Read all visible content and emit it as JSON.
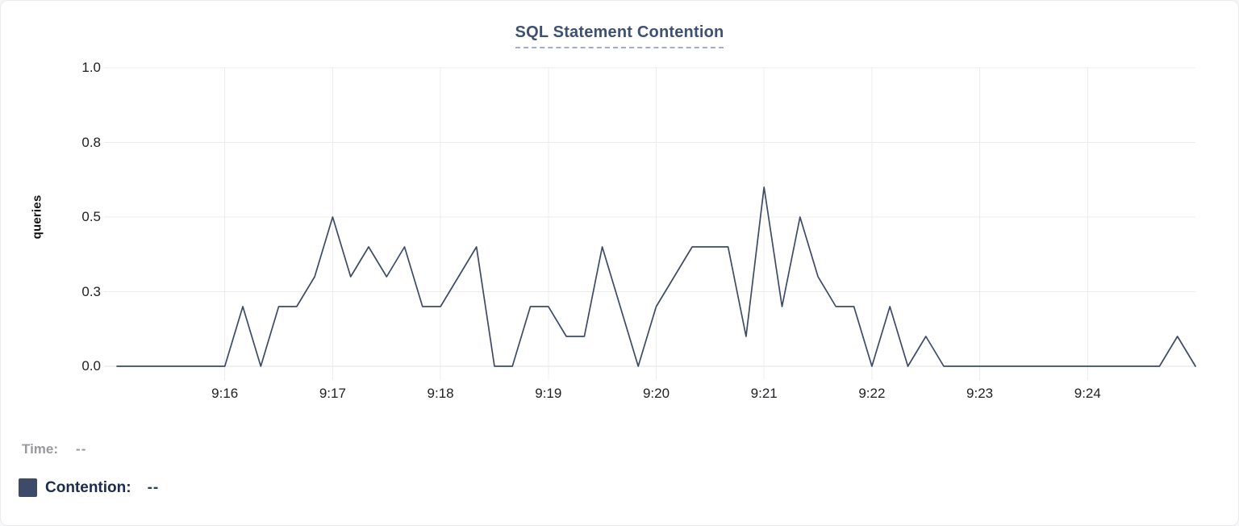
{
  "header": {
    "title": "SQL Statement Contention"
  },
  "chart_data": {
    "type": "line",
    "title": "SQL Statement Contention",
    "xlabel": "",
    "ylabel": "queries",
    "ylim": [
      0,
      1
    ],
    "grid": true,
    "legend_position": "bottom-left",
    "y_tick_labels": [
      "1.0",
      "0.8",
      "0.5",
      "0.3",
      "0.0"
    ],
    "y_tick_values": [
      1.0,
      0.75,
      0.5,
      0.25,
      0.0
    ],
    "x_tick_labels": [
      "9:16",
      "9:17",
      "9:18",
      "9:19",
      "9:20",
      "9:21",
      "9:22",
      "9:23",
      "9:24"
    ],
    "x_start": "9:15:00",
    "x_end": "9:25:00",
    "interval_seconds": 10,
    "series": [
      {
        "name": "Contention",
        "color": "#3d4b68",
        "times": [
          "9:15:00",
          "9:15:10",
          "9:15:20",
          "9:15:30",
          "9:15:40",
          "9:15:50",
          "9:16:00",
          "9:16:10",
          "9:16:20",
          "9:16:30",
          "9:16:40",
          "9:16:50",
          "9:17:00",
          "9:17:10",
          "9:17:20",
          "9:17:30",
          "9:17:40",
          "9:17:50",
          "9:18:00",
          "9:18:10",
          "9:18:20",
          "9:18:30",
          "9:18:40",
          "9:18:50",
          "9:19:00",
          "9:19:10",
          "9:19:20",
          "9:19:30",
          "9:19:40",
          "9:19:50",
          "9:20:00",
          "9:20:10",
          "9:20:20",
          "9:20:30",
          "9:20:40",
          "9:20:50",
          "9:21:00",
          "9:21:10",
          "9:21:20",
          "9:21:30",
          "9:21:40",
          "9:21:50",
          "9:22:00",
          "9:22:10",
          "9:22:20",
          "9:22:30",
          "9:22:40",
          "9:22:50",
          "9:23:00",
          "9:23:10",
          "9:23:20",
          "9:23:30",
          "9:23:40",
          "9:23:50",
          "9:24:00",
          "9:24:10",
          "9:24:20",
          "9:24:30",
          "9:24:40",
          "9:24:50",
          "9:25:00"
        ],
        "values": [
          0,
          0,
          0,
          0,
          0,
          0,
          0,
          0.2,
          0,
          0.2,
          0.2,
          0.3,
          0.5,
          0.3,
          0.4,
          0.3,
          0.4,
          0.2,
          0.2,
          0.3,
          0.4,
          0,
          0,
          0.2,
          0.2,
          0.1,
          0.1,
          0.4,
          0.2,
          0,
          0.2,
          0.3,
          0.4,
          0.4,
          0.4,
          0.1,
          0.6,
          0.2,
          0.5,
          0.3,
          0.2,
          0.2,
          0,
          0.2,
          0,
          0.1,
          0,
          0,
          0,
          0,
          0,
          0,
          0,
          0,
          0,
          0,
          0,
          0,
          0,
          0.1,
          0
        ]
      }
    ],
    "colors": {
      "line": "#3d4b68",
      "gridline": "#ececee",
      "baseline": "#e3e3e6",
      "title": "#3d5174",
      "title_underline": "#a3abd2",
      "tick_text": "#202124"
    }
  },
  "footer": {
    "time_label": "Time:",
    "time_value": "--",
    "contention_label": "Contention:",
    "contention_value": "--"
  }
}
